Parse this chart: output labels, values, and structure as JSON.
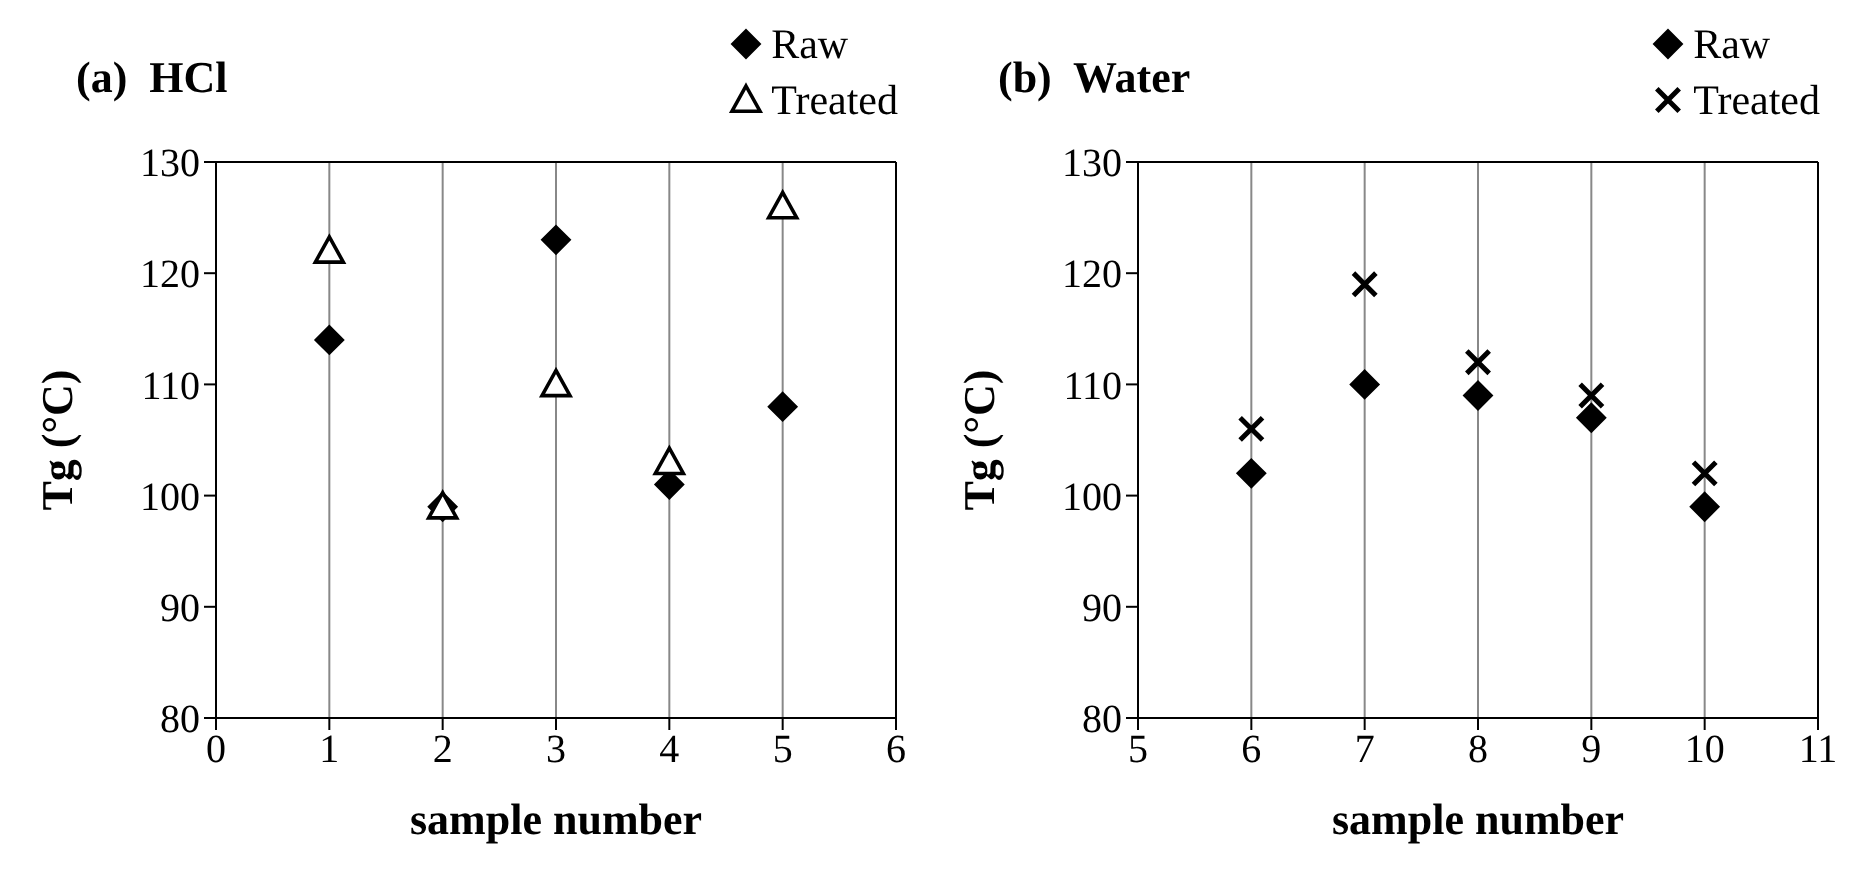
{
  "chart_data": [
    {
      "type": "scatter",
      "title": "(a)  HCl",
      "xlabel": "sample number",
      "ylabel": "Tg (°C)",
      "x": [
        1,
        2,
        3,
        4,
        5
      ],
      "series": [
        {
          "name": "Raw",
          "color": "#000000",
          "marker": "diamond",
          "values": [
            114,
            99,
            123,
            101,
            108
          ]
        },
        {
          "name": "Treated",
          "color": "#000000",
          "marker": "triangle",
          "values": [
            122,
            99,
            110,
            103,
            126
          ]
        }
      ],
      "xlim": [
        0,
        6
      ],
      "xticks": [
        0,
        1,
        2,
        3,
        4,
        5,
        6
      ],
      "ylim": [
        80,
        130
      ],
      "yticks": [
        80,
        90,
        100,
        110,
        120,
        130
      ],
      "grid": "x",
      "legend": "top right"
    },
    {
      "type": "scatter",
      "title": "(b)  Water",
      "xlabel": "sample number",
      "ylabel": "Tg (°C)",
      "x": [
        6,
        7,
        8,
        9,
        10
      ],
      "series": [
        {
          "name": "Raw",
          "color": "#000000",
          "marker": "diamond",
          "values": [
            102,
            110,
            109,
            107,
            99
          ]
        },
        {
          "name": "Treated",
          "color": "#000000",
          "marker": "cross",
          "values": [
            106,
            119,
            112,
            109,
            102
          ]
        }
      ],
      "xlim": [
        5,
        11
      ],
      "xticks": [
        5,
        6,
        7,
        8,
        9,
        10,
        11
      ],
      "ylim": [
        80,
        130
      ],
      "yticks": [
        80,
        90,
        100,
        110,
        120,
        130
      ],
      "grid": "x",
      "legend": "top right"
    }
  ]
}
